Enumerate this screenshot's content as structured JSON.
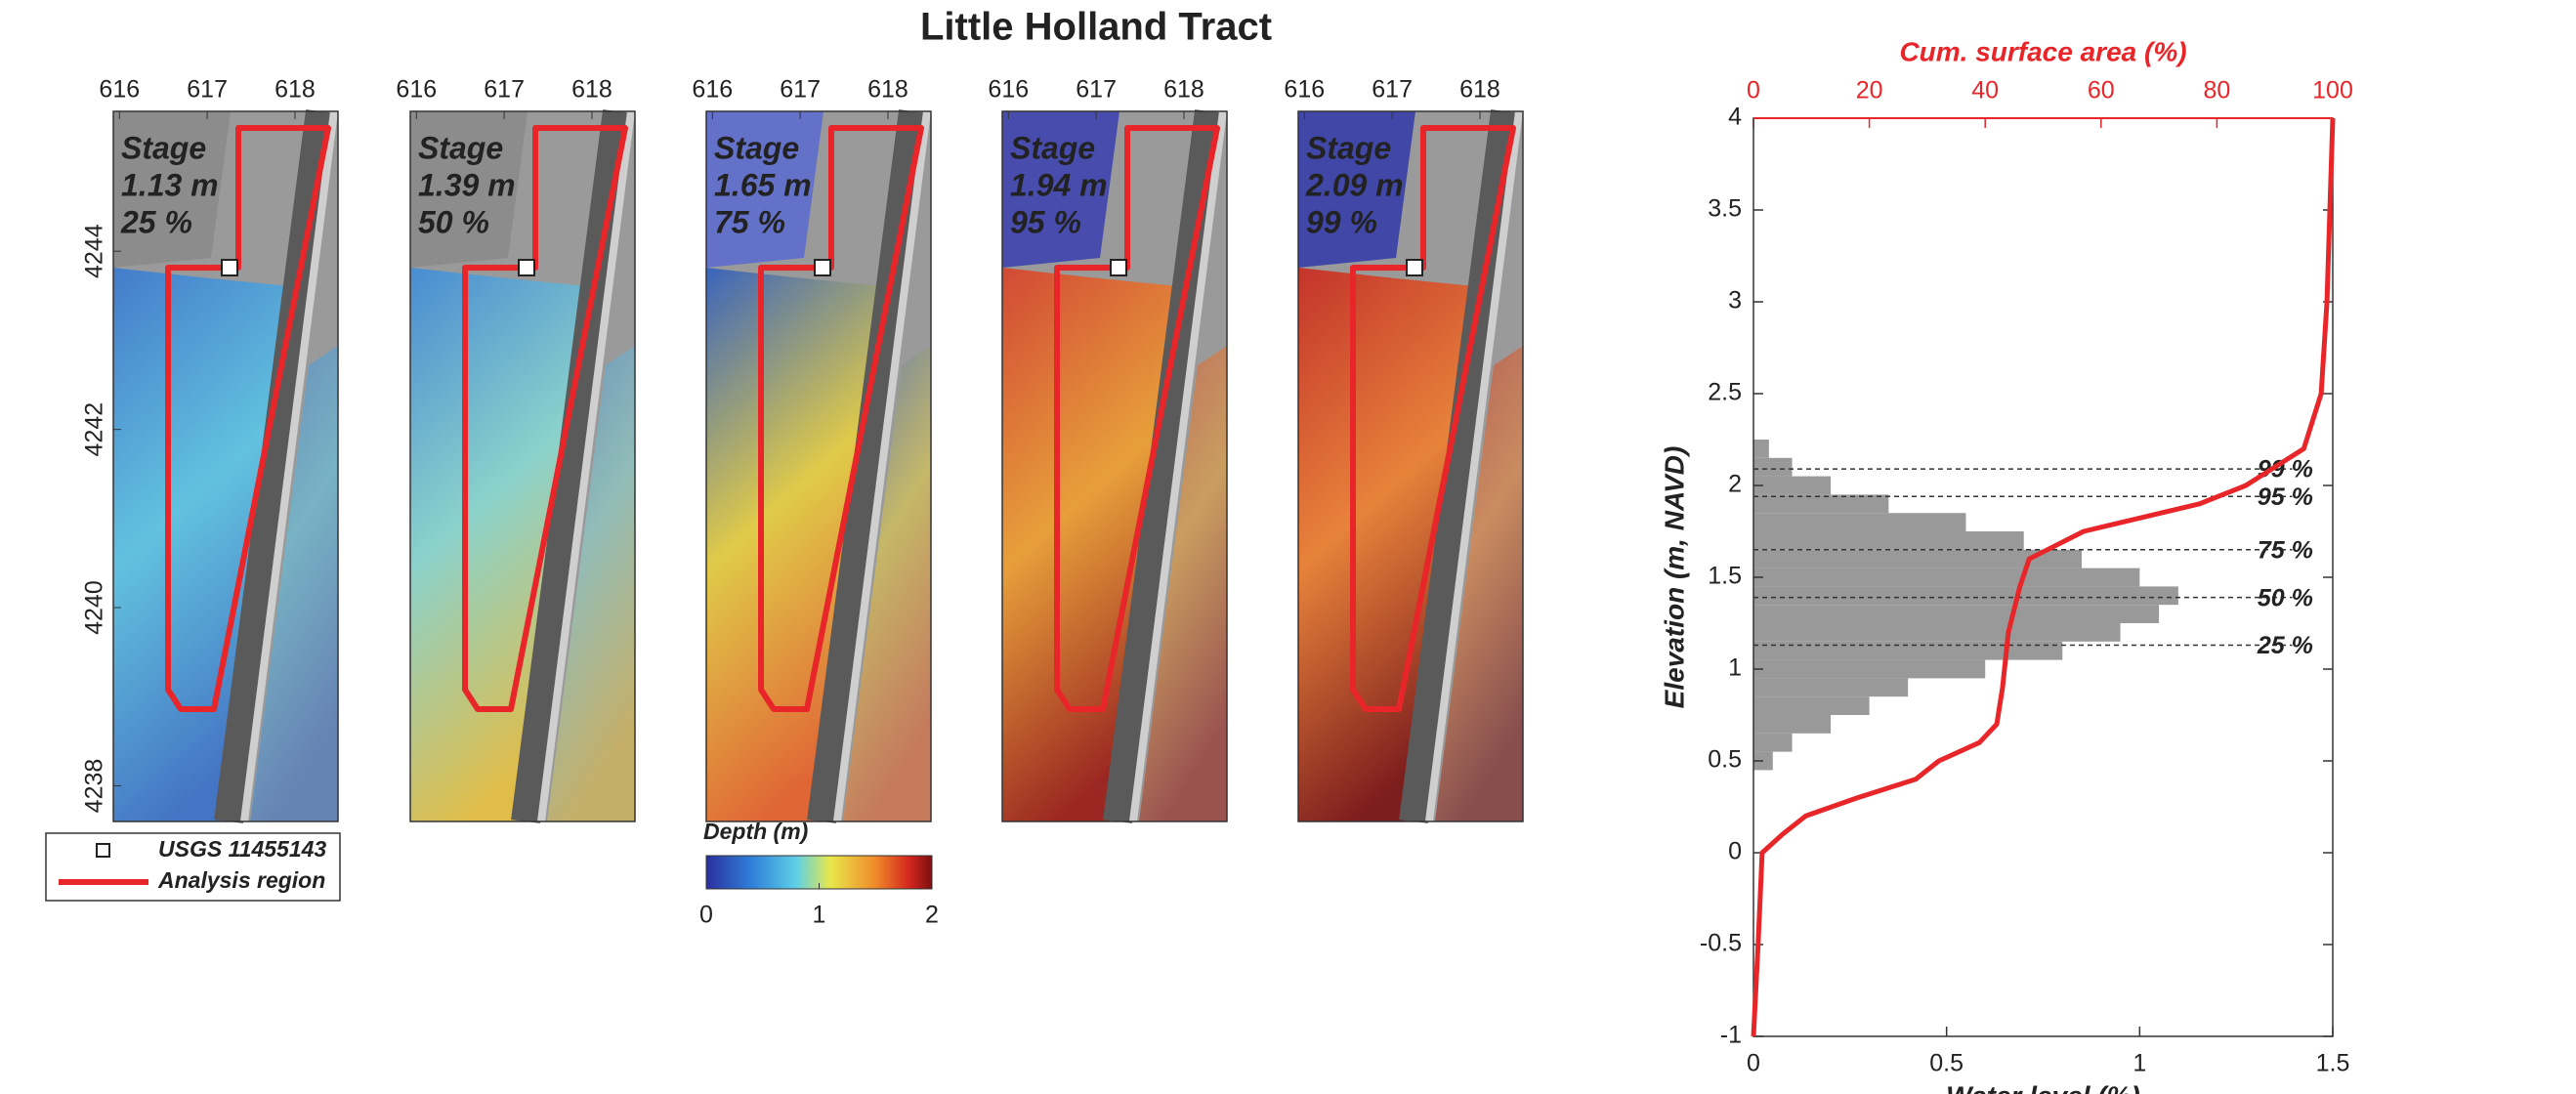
{
  "title": "Little Holland Tract",
  "maps": {
    "xlim": [
      615.93,
      618.49
    ],
    "ylim": [
      4237.6,
      4245.57
    ],
    "xticks": [
      616,
      617,
      618
    ],
    "yticks": [
      4238,
      4240,
      4242,
      4244
    ],
    "panels": [
      {
        "stage_label": "Stage",
        "stage": "1.13 m",
        "percent": "25 %"
      },
      {
        "stage_label": "Stage",
        "stage": "1.39 m",
        "percent": "50 %"
      },
      {
        "stage_label": "Stage",
        "stage": "1.65 m",
        "percent": "75 %"
      },
      {
        "stage_label": "Stage",
        "stage": "1.94 m",
        "percent": "95 %"
      },
      {
        "stage_label": "Stage",
        "stage": "2.09 m",
        "percent": "99 %"
      }
    ]
  },
  "legend": {
    "gauge": "USGS 11455143",
    "region": "Analysis region"
  },
  "colorbar": {
    "title": "Depth (m)",
    "lim": [
      0,
      2
    ],
    "ticks": [
      0,
      1,
      2
    ]
  },
  "chart_data": {
    "type": "line",
    "xlabel": "Water level (%)",
    "ylabel": "Elevation (m, NAVD)",
    "x2label": "Cum. surface area (%)",
    "xlim": [
      0,
      1.5
    ],
    "xticks": [
      0,
      0.5,
      1,
      1.5
    ],
    "x2lim": [
      0,
      100
    ],
    "x2ticks": [
      0,
      20,
      40,
      60,
      80,
      100
    ],
    "ylim": [
      -1,
      4
    ],
    "yticks": [
      -1,
      -0.5,
      0,
      0.5,
      1,
      1.5,
      2,
      2.5,
      3,
      3.5,
      4
    ],
    "histogram": {
      "color": "#999999",
      "bins": [
        0.45,
        0.55,
        0.65,
        0.75,
        0.85,
        0.95,
        1.05,
        1.15,
        1.25,
        1.35,
        1.45,
        1.55,
        1.65,
        1.75,
        1.85,
        1.95,
        2.05,
        2.15,
        2.25
      ],
      "values": [
        0.05,
        0.1,
        0.2,
        0.3,
        0.4,
        0.6,
        0.8,
        0.95,
        1.05,
        1.1,
        1.0,
        0.85,
        0.7,
        0.55,
        0.35,
        0.2,
        0.1,
        0.04
      ]
    },
    "series": [
      {
        "color": "#e8262a",
        "axis": "x2",
        "x": [
          0,
          0.8,
          1.5,
          5,
          9,
          18,
          28,
          32,
          39,
          42,
          43,
          44,
          46,
          47.6,
          57,
          77,
          85,
          90,
          95,
          98,
          99,
          100
        ],
        "y": [
          -1,
          -0.5,
          0,
          0.1,
          0.2,
          0.3,
          0.4,
          0.5,
          0.6,
          0.7,
          0.9,
          1.2,
          1.45,
          1.6,
          1.75,
          1.9,
          2.0,
          2.1,
          2.2,
          2.5,
          3,
          4
        ]
      }
    ],
    "annotations": [
      {
        "y": 2.09,
        "text": "99 %"
      },
      {
        "y": 1.94,
        "text": "95 %"
      },
      {
        "y": 1.65,
        "text": "75 %"
      },
      {
        "y": 1.39,
        "text": "50 %"
      },
      {
        "y": 1.13,
        "text": "25 %"
      }
    ]
  }
}
